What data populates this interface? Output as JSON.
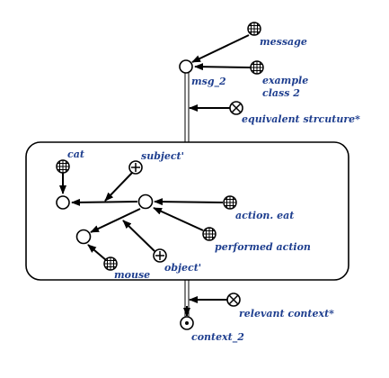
{
  "diagram": {
    "colors": {
      "label": "#1f3f8f",
      "stroke": "#000000",
      "background": "#ffffff"
    },
    "nodes": {
      "message": {
        "label": "message",
        "symbol": "grid-circle"
      },
      "msg_2": {
        "label": "msg_2",
        "symbol": "open-circle"
      },
      "example_class": {
        "label_line1": "example",
        "label_line2": "class 2",
        "symbol": "grid-circle"
      },
      "equivalent": {
        "label": "equivalent strcuture*",
        "symbol": "x-circle"
      },
      "cat": {
        "label": "cat",
        "symbol": "grid-circle"
      },
      "subject": {
        "label": "subject'",
        "symbol": "plus-circle"
      },
      "action_eat": {
        "label": "action. eat",
        "symbol": "grid-circle"
      },
      "performed_action": {
        "label": "performed action",
        "symbol": "grid-circle"
      },
      "object": {
        "label": "object'",
        "symbol": "plus-circle"
      },
      "mouse": {
        "label": "mouse",
        "symbol": "grid-circle"
      },
      "relevant_context": {
        "label": "relevant context*",
        "symbol": "x-circle"
      },
      "context_2": {
        "label": "context_2",
        "symbol": "dot-circle"
      }
    }
  }
}
